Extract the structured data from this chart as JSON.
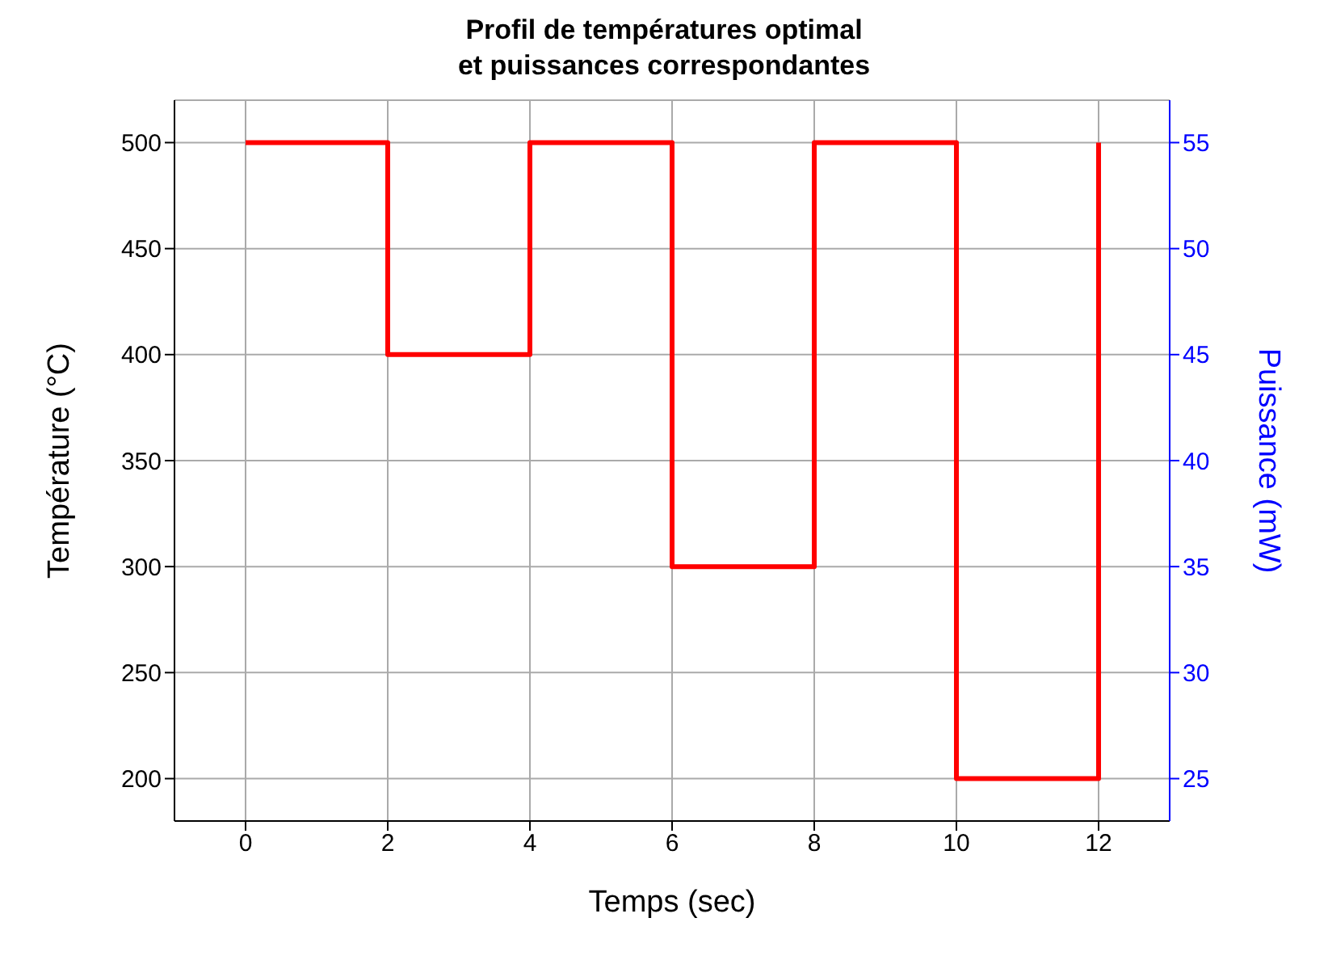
{
  "chart_data": {
    "type": "step",
    "title": "Profil de températures optimal\net puissances correspondantes",
    "xlabel": "Temps (sec)",
    "ylabel": "Température (°C)",
    "y2label": "Puissance (mW)",
    "x": [
      0,
      2,
      4,
      6,
      8,
      10,
      12
    ],
    "series": [
      {
        "color": "#ff0000",
        "values": [
          500,
          400,
          500,
          300,
          500,
          200,
          500
        ]
      }
    ],
    "xlim": [
      -1,
      13
    ],
    "xticks": [
      0,
      2,
      4,
      6,
      8,
      10,
      12
    ],
    "ylim": [
      180,
      520
    ],
    "yticks": [
      200,
      250,
      300,
      350,
      400,
      450,
      500
    ],
    "y2lim": [
      23,
      57
    ],
    "y2ticks": [
      25,
      30,
      35,
      40,
      45,
      50,
      55
    ],
    "grid": true,
    "legend": false,
    "marker": "none",
    "line_style": "solid"
  }
}
